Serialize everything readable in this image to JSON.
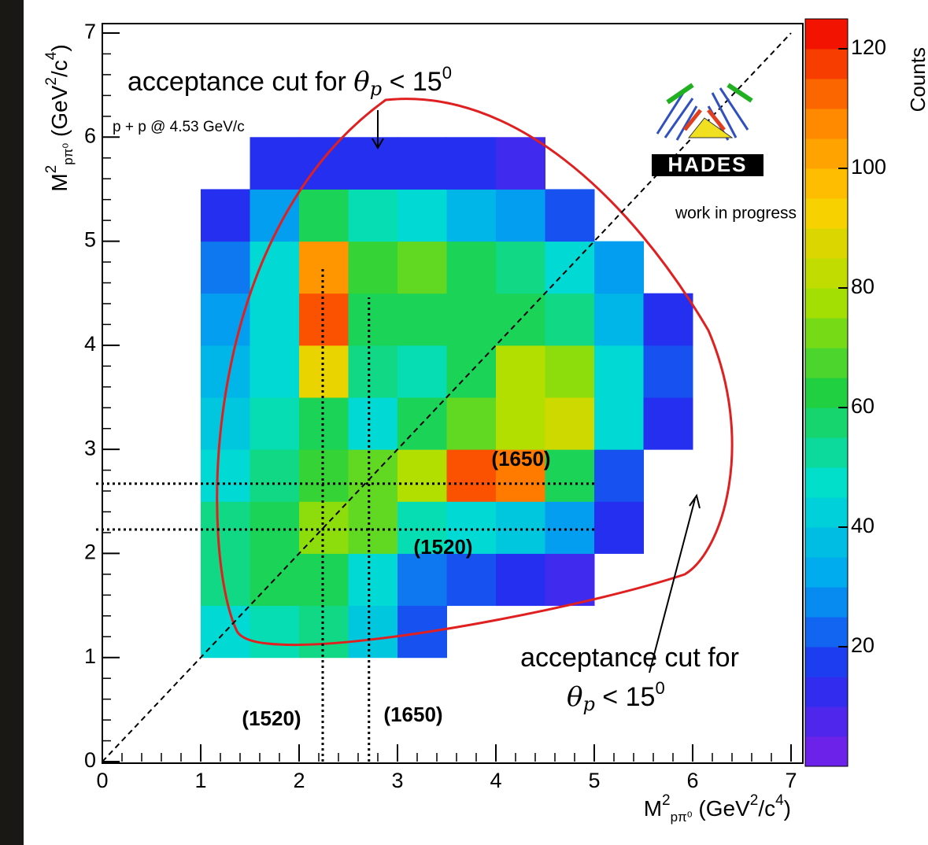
{
  "chart_data": {
    "type": "heatmap",
    "x_label": {
      "main": "M",
      "sup": "2",
      "sub": "pπ⁰",
      "unit": " (GeV",
      "unit_sup": "2",
      "unit_mid": "/c",
      "unit_sup2": "4",
      "unit_end": ")"
    },
    "y_label": {
      "main": "M",
      "sup": "2",
      "sub": "pπ⁰",
      "unit": " (GeV",
      "unit_sup": "2",
      "unit_mid": "/c",
      "unit_sup2": "4",
      "unit_end": ")"
    },
    "colorbar_label": "Counts",
    "subtitle": "p + p @ 4.53 GeV/c",
    "logo": "HADES",
    "note": "work in progress",
    "annotations": [
      {
        "lead": "acceptance cut for ",
        "symbol": "θ",
        "sub": "p",
        "tail": " < 15",
        "sup": "0"
      },
      {
        "lead": "acceptance cut for",
        "symbol": "θ",
        "sub": "p",
        "tail": " < 15",
        "sup": "0"
      }
    ],
    "xlim": [
      0,
      7
    ],
    "ylim": [
      0,
      7
    ],
    "xticks": [
      0,
      1,
      2,
      3,
      4,
      5,
      6,
      7
    ],
    "yticks": [
      0,
      1,
      2,
      3,
      4,
      5,
      6,
      7
    ],
    "zlim": [
      0,
      125
    ],
    "zticks": [
      20,
      40,
      60,
      80,
      100,
      120
    ],
    "colormap": [
      "#7a1fe8",
      "#2030f0",
      "#00a8f0",
      "#00e0d0",
      "#20d040",
      "#a8e000",
      "#ffd000",
      "#ff8000",
      "#f00000"
    ],
    "x_bins": [
      1,
      1.5,
      2,
      2.5,
      3,
      3.5,
      4,
      4.5,
      5,
      5.5,
      6
    ],
    "y_bins": [
      1,
      1.5,
      2,
      2.5,
      3,
      3.5,
      4,
      4.5,
      5,
      5.5,
      6
    ],
    "counts": [
      [
        45,
        50,
        55,
        40,
        20,
        null,
        null,
        null,
        null,
        null
      ],
      [
        55,
        60,
        60,
        45,
        25,
        20,
        15,
        10,
        null,
        null
      ],
      [
        55,
        60,
        75,
        70,
        50,
        45,
        40,
        30,
        15,
        null
      ],
      [
        45,
        55,
        65,
        70,
        80,
        115,
        110,
        60,
        20,
        null
      ],
      [
        40,
        50,
        60,
        45,
        60,
        70,
        80,
        85,
        45,
        15
      ],
      [
        35,
        45,
        90,
        55,
        50,
        60,
        80,
        75,
        45,
        20
      ],
      [
        30,
        45,
        115,
        60,
        60,
        60,
        60,
        55,
        35,
        15
      ],
      [
        25,
        45,
        105,
        65,
        70,
        60,
        55,
        45,
        30,
        null
      ],
      [
        15,
        30,
        60,
        50,
        45,
        35,
        30,
        20,
        null,
        null
      ],
      [
        null,
        15,
        15,
        15,
        15,
        15,
        10,
        null,
        null,
        null
      ]
    ],
    "x_lines": [
      {
        "value": 2.24,
        "label": "(1520)"
      },
      {
        "value": 2.71,
        "label": "(1650)"
      }
    ],
    "y_lines": [
      {
        "value": 2.23,
        "label": "(1520)"
      },
      {
        "value": 2.67,
        "label": "(1650)"
      }
    ]
  }
}
